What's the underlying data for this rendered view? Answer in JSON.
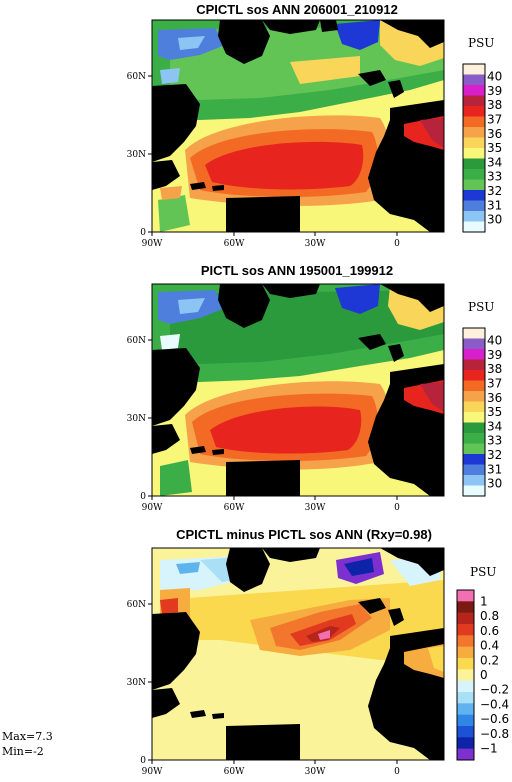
{
  "chart_data": [
    {
      "type": "heatmap",
      "title": "CPICTL sos ANN 206001_210912",
      "unit": "PSU",
      "x_ticks": [
        "90W",
        "60W",
        "30W",
        "0"
      ],
      "y_ticks": [
        "0",
        "30N",
        "60N"
      ],
      "xlim": [
        -90,
        20
      ],
      "ylim": [
        0,
        80
      ],
      "colorbar": {
        "labels": [
          "40",
          "39",
          "38",
          "37",
          "36",
          "35",
          "34",
          "33",
          "32",
          "31",
          "30"
        ],
        "colors": [
          "#fdf0dc",
          "#8a5cc8",
          "#d81fcc",
          "#b8233c",
          "#e8241e",
          "#f26a24",
          "#f6a24a",
          "#f9d65a",
          "#f8f77a",
          "#2a9a3c",
          "#3cae48",
          "#62c455",
          "#1e38d6",
          "#4f7fdc",
          "#8cc5f4",
          "#e8fbff"
        ]
      },
      "approx_field": {
        "subtropical_max_psu": 37.3,
        "equatorial_psu": 35.5,
        "subpolar_psu": 34.2,
        "mediterranean_psu": 38.5
      }
    },
    {
      "type": "heatmap",
      "title": "PICTL sos ANN 195001_199912",
      "unit": "PSU",
      "x_ticks": [
        "90W",
        "60W",
        "30W",
        "0"
      ],
      "y_ticks": [
        "0",
        "30N",
        "60N"
      ],
      "xlim": [
        -90,
        20
      ],
      "ylim": [
        0,
        80
      ],
      "colorbar": {
        "labels": [
          "40",
          "39",
          "38",
          "37",
          "36",
          "35",
          "34",
          "33",
          "32",
          "31",
          "30"
        ],
        "colors": [
          "#fdf0dc",
          "#8a5cc8",
          "#d81fcc",
          "#b8233c",
          "#e8241e",
          "#f26a24",
          "#f6a24a",
          "#f9d65a",
          "#f8f77a",
          "#2a9a3c",
          "#3cae48",
          "#62c455",
          "#1e38d6",
          "#4f7fdc",
          "#8cc5f4",
          "#e8fbff"
        ]
      },
      "approx_field": {
        "subtropical_max_psu": 37.2,
        "equatorial_psu": 35.4,
        "subpolar_psu": 34.0,
        "mediterranean_psu": 38.3
      }
    },
    {
      "type": "heatmap",
      "title": "CPICTL minus PICTL sos ANN (Rxy=0.98)",
      "unit": "PSU",
      "x_ticks": [
        "90W",
        "60W",
        "30W",
        "0"
      ],
      "y_ticks": [
        "0",
        "30N",
        "60N"
      ],
      "xlim": [
        -90,
        20
      ],
      "ylim": [
        0,
        80
      ],
      "colorbar": {
        "labels": [
          "1",
          "0.8",
          "0.6",
          "0.4",
          "0.2",
          "0",
          "−0.2",
          "−0.4",
          "−0.6",
          "−0.8",
          "−1"
        ],
        "colors": [
          "#f26fb4",
          "#7a1a12",
          "#b5251c",
          "#e23a1f",
          "#f2762c",
          "#f7ac40",
          "#fbd94f",
          "#fbf39a",
          "#d7f3fb",
          "#a9e0f6",
          "#5fb4ef",
          "#2f86e6",
          "#1c52d6",
          "#0d23a8",
          "#7d2fd0"
        ]
      },
      "stats": {
        "max": "Max=7.3",
        "min": "Min=-2"
      },
      "approx_field": {
        "ocean_mean_psu": 0.25,
        "gulf_stream_extension_psu": 0.7,
        "labrador_sea_psu": -0.5
      }
    }
  ]
}
